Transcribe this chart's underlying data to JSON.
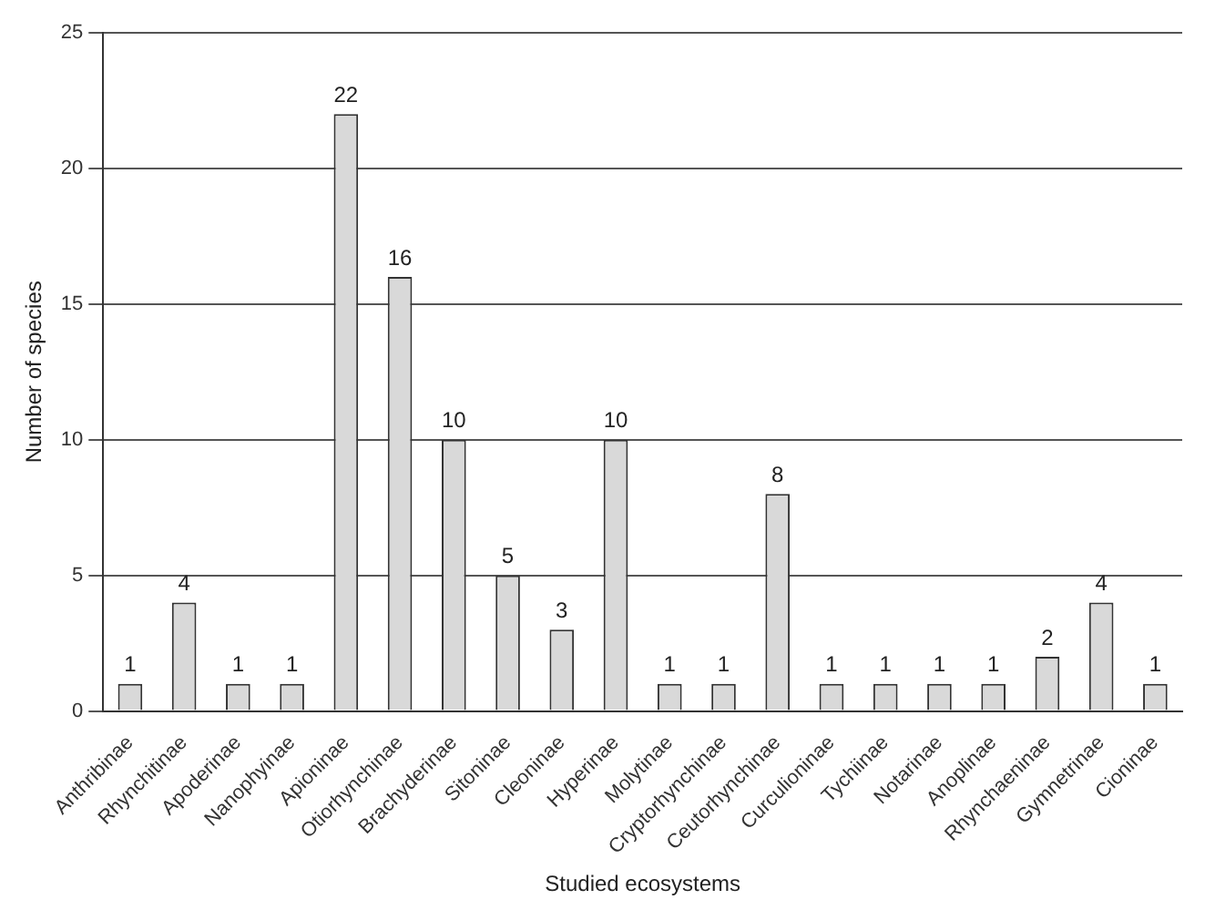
{
  "chart_data": {
    "type": "bar",
    "xlabel": "Studied ecosystems",
    "ylabel": "Number of species",
    "categories": [
      "Anthribinae",
      "Rhynchitinae",
      "Apoderinae",
      "Nanophyinae",
      "Apioninae",
      "Otiorhynchinae",
      "Brachyderinae",
      "Sitoninae",
      "Cleoninae",
      "Hyperinae",
      "Molytinae",
      "Cryptorhynchinae",
      "Ceutorhynchinae",
      "Curculioninae",
      "Tychiinae",
      "Notarinae",
      "Anoplinae",
      "Rhynchaeninae",
      "Gymnetrinae",
      "Cioninae"
    ],
    "values": [
      1,
      4,
      1,
      1,
      22,
      16,
      10,
      5,
      3,
      10,
      1,
      1,
      8,
      1,
      1,
      1,
      1,
      2,
      4,
      1
    ],
    "color": "#d9d9d9",
    "ylim": [
      0,
      25
    ],
    "yticks": [
      0,
      5,
      10,
      15,
      20,
      25
    ],
    "grid": "y",
    "data_labels": true
  }
}
